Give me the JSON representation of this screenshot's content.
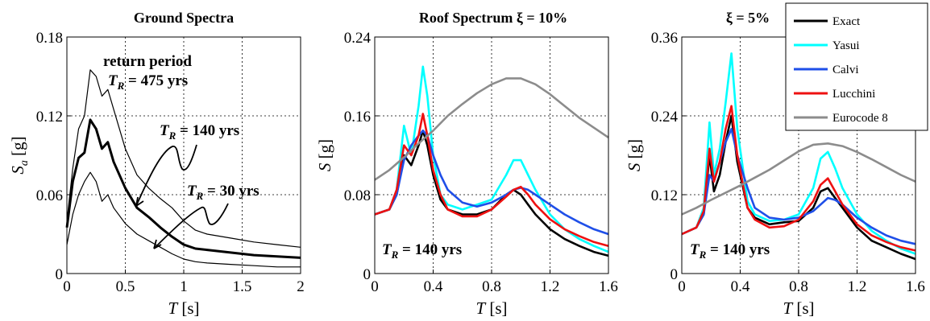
{
  "chart_data": [
    {
      "type": "line",
      "title": "Ground Spectra",
      "xlabel": "T [s]",
      "ylabel": "S_a [g]",
      "xlim": [
        0,
        2
      ],
      "ylim": [
        0,
        0.18
      ],
      "xticks": [
        "0",
        "0.5",
        "1",
        "1.5",
        "2"
      ],
      "yticks": [
        "0",
        "0.06",
        "0.12",
        "0.18"
      ],
      "grid": true,
      "series": [
        {
          "color": "#000000",
          "width": 1.2,
          "x": [
            0,
            0.05,
            0.1,
            0.15,
            0.2,
            0.25,
            0.3,
            0.35,
            0.4,
            0.5,
            0.6,
            0.7,
            0.8,
            0.9,
            1.0,
            1.1,
            1.2,
            1.4,
            1.6,
            1.8,
            2.0
          ],
          "y": [
            0.04,
            0.08,
            0.11,
            0.12,
            0.155,
            0.15,
            0.135,
            0.14,
            0.125,
            0.095,
            0.075,
            0.065,
            0.057,
            0.05,
            0.04,
            0.033,
            0.03,
            0.027,
            0.024,
            0.022,
            0.02
          ]
        },
        {
          "color": "#000000",
          "width": 3,
          "x": [
            0,
            0.05,
            0.1,
            0.15,
            0.2,
            0.25,
            0.3,
            0.35,
            0.4,
            0.5,
            0.6,
            0.7,
            0.8,
            0.9,
            1.0,
            1.1,
            1.2,
            1.4,
            1.6,
            1.8,
            2.0
          ],
          "y": [
            0.035,
            0.07,
            0.088,
            0.092,
            0.117,
            0.11,
            0.095,
            0.1,
            0.085,
            0.065,
            0.05,
            0.043,
            0.035,
            0.028,
            0.022,
            0.019,
            0.018,
            0.016,
            0.014,
            0.013,
            0.012
          ]
        },
        {
          "color": "#000000",
          "width": 1.2,
          "x": [
            0,
            0.05,
            0.1,
            0.15,
            0.2,
            0.25,
            0.3,
            0.35,
            0.4,
            0.5,
            0.6,
            0.7,
            0.8,
            0.9,
            1.0,
            1.1,
            1.2,
            1.4,
            1.6,
            1.8,
            2.0
          ],
          "y": [
            0.022,
            0.045,
            0.06,
            0.07,
            0.077,
            0.07,
            0.055,
            0.06,
            0.05,
            0.038,
            0.03,
            0.025,
            0.02,
            0.015,
            0.011,
            0.009,
            0.008,
            0.007,
            0.006,
            0.005,
            0.005
          ]
        }
      ],
      "annotations": [
        {
          "lines": [
            "return period",
            "T_R = 475 yrs"
          ]
        },
        {
          "lines": [
            "T_R = 140 yrs"
          ]
        },
        {
          "lines": [
            "T_R = 30 yrs"
          ]
        }
      ],
      "label_return": "return period",
      "label_475": "T",
      "label_475_sub": "R",
      "label_475_val": " = 475 yrs",
      "label_140_val": " = 140 yrs",
      "label_30_val": " = 30 yrs"
    },
    {
      "type": "line",
      "title": "Roof Spectrum ξ = 10%",
      "xlabel": "T [s]",
      "ylabel": "S [g]",
      "xlim": [
        0,
        1.6
      ],
      "ylim": [
        0,
        0.24
      ],
      "xticks": [
        "0",
        "0.4",
        "0.8",
        "1.2",
        "1.6"
      ],
      "yticks": [
        "0",
        "0.08",
        "0.16",
        "0.24"
      ],
      "grid": true,
      "annotation": "T_R = 140 yrs",
      "series": [
        {
          "name": "Exact",
          "color": "#000000",
          "x": [
            0,
            0.1,
            0.15,
            0.2,
            0.25,
            0.3,
            0.33,
            0.36,
            0.4,
            0.45,
            0.5,
            0.6,
            0.7,
            0.8,
            0.9,
            0.95,
            1.0,
            1.05,
            1.1,
            1.2,
            1.3,
            1.4,
            1.5,
            1.6
          ],
          "y": [
            0.06,
            0.065,
            0.08,
            0.12,
            0.11,
            0.13,
            0.145,
            0.13,
            0.1,
            0.075,
            0.065,
            0.06,
            0.06,
            0.065,
            0.08,
            0.085,
            0.08,
            0.07,
            0.06,
            0.045,
            0.035,
            0.028,
            0.022,
            0.018
          ]
        },
        {
          "name": "Yasui",
          "color": "#00ffff",
          "x": [
            0,
            0.1,
            0.15,
            0.2,
            0.25,
            0.3,
            0.33,
            0.36,
            0.4,
            0.45,
            0.5,
            0.6,
            0.7,
            0.8,
            0.9,
            0.95,
            1.0,
            1.05,
            1.1,
            1.2,
            1.3,
            1.4,
            1.5,
            1.6
          ],
          "y": [
            0.06,
            0.065,
            0.085,
            0.15,
            0.12,
            0.17,
            0.21,
            0.18,
            0.12,
            0.08,
            0.07,
            0.065,
            0.07,
            0.075,
            0.1,
            0.115,
            0.115,
            0.1,
            0.085,
            0.06,
            0.045,
            0.035,
            0.028,
            0.022
          ]
        },
        {
          "name": "Calvi",
          "color": "#1f4fe8",
          "x": [
            0,
            0.1,
            0.15,
            0.2,
            0.25,
            0.3,
            0.33,
            0.36,
            0.4,
            0.45,
            0.5,
            0.6,
            0.7,
            0.8,
            0.9,
            0.95,
            1.0,
            1.05,
            1.1,
            1.2,
            1.3,
            1.4,
            1.5,
            1.6
          ],
          "y": [
            0.06,
            0.065,
            0.08,
            0.115,
            0.13,
            0.14,
            0.145,
            0.14,
            0.12,
            0.1,
            0.085,
            0.072,
            0.068,
            0.072,
            0.08,
            0.085,
            0.087,
            0.085,
            0.08,
            0.07,
            0.06,
            0.052,
            0.045,
            0.04
          ]
        },
        {
          "name": "Lucchini",
          "color": "#ee1111",
          "x": [
            0,
            0.1,
            0.15,
            0.2,
            0.25,
            0.3,
            0.33,
            0.36,
            0.4,
            0.45,
            0.5,
            0.6,
            0.7,
            0.8,
            0.9,
            0.95,
            1.0,
            1.05,
            1.1,
            1.2,
            1.3,
            1.4,
            1.5,
            1.6
          ],
          "y": [
            0.06,
            0.065,
            0.085,
            0.13,
            0.12,
            0.14,
            0.162,
            0.14,
            0.105,
            0.08,
            0.065,
            0.058,
            0.058,
            0.065,
            0.078,
            0.085,
            0.088,
            0.08,
            0.07,
            0.055,
            0.045,
            0.038,
            0.032,
            0.028
          ]
        },
        {
          "name": "Eurocode 8",
          "color": "#8c8c8c",
          "x": [
            0,
            0.1,
            0.2,
            0.3,
            0.4,
            0.5,
            0.6,
            0.7,
            0.8,
            0.9,
            1.0,
            1.1,
            1.2,
            1.3,
            1.4,
            1.5,
            1.6
          ],
          "y": [
            0.095,
            0.105,
            0.118,
            0.132,
            0.145,
            0.16,
            0.172,
            0.183,
            0.192,
            0.198,
            0.198,
            0.192,
            0.182,
            0.17,
            0.158,
            0.148,
            0.138
          ]
        }
      ]
    },
    {
      "type": "line",
      "title": "ξ = 5%",
      "xlabel": "T [s]",
      "ylabel": "S [g]",
      "xlim": [
        0,
        1.6
      ],
      "ylim": [
        0,
        0.36
      ],
      "xticks": [
        "0",
        "0.4",
        "0.8",
        "1.2",
        "1.6"
      ],
      "yticks": [
        "0",
        "0.12",
        "0.24",
        "0.36"
      ],
      "grid": true,
      "annotation": "T_R = 140 yrs",
      "series": [
        {
          "name": "Exact",
          "color": "#000000",
          "x": [
            0,
            0.1,
            0.15,
            0.19,
            0.22,
            0.26,
            0.3,
            0.34,
            0.38,
            0.45,
            0.5,
            0.6,
            0.7,
            0.8,
            0.9,
            0.95,
            1.0,
            1.05,
            1.1,
            1.2,
            1.3,
            1.4,
            1.5,
            1.6
          ],
          "y": [
            0.06,
            0.07,
            0.09,
            0.18,
            0.125,
            0.15,
            0.2,
            0.24,
            0.17,
            0.1,
            0.085,
            0.075,
            0.078,
            0.08,
            0.1,
            0.125,
            0.13,
            0.115,
            0.1,
            0.07,
            0.05,
            0.04,
            0.03,
            0.022
          ]
        },
        {
          "name": "Yasui",
          "color": "#00ffff",
          "x": [
            0,
            0.1,
            0.15,
            0.19,
            0.22,
            0.26,
            0.3,
            0.34,
            0.38,
            0.45,
            0.5,
            0.6,
            0.7,
            0.8,
            0.9,
            0.95,
            1.0,
            1.05,
            1.1,
            1.2,
            1.3,
            1.4,
            1.5,
            1.6
          ],
          "y": [
            0.06,
            0.07,
            0.1,
            0.23,
            0.15,
            0.19,
            0.26,
            0.335,
            0.22,
            0.11,
            0.09,
            0.08,
            0.082,
            0.09,
            0.13,
            0.175,
            0.185,
            0.16,
            0.13,
            0.09,
            0.065,
            0.05,
            0.038,
            0.03
          ]
        },
        {
          "name": "Calvi",
          "color": "#1f4fe8",
          "x": [
            0,
            0.1,
            0.15,
            0.19,
            0.22,
            0.26,
            0.3,
            0.34,
            0.38,
            0.45,
            0.5,
            0.6,
            0.7,
            0.8,
            0.9,
            0.95,
            1.0,
            1.05,
            1.1,
            1.2,
            1.3,
            1.4,
            1.5,
            1.6
          ],
          "y": [
            0.06,
            0.07,
            0.09,
            0.15,
            0.14,
            0.17,
            0.2,
            0.22,
            0.18,
            0.13,
            0.1,
            0.085,
            0.082,
            0.085,
            0.095,
            0.105,
            0.115,
            0.112,
            0.105,
            0.085,
            0.07,
            0.058,
            0.05,
            0.045
          ]
        },
        {
          "name": "Lucchini",
          "color": "#ee1111",
          "x": [
            0,
            0.1,
            0.15,
            0.19,
            0.22,
            0.26,
            0.3,
            0.34,
            0.38,
            0.45,
            0.5,
            0.6,
            0.7,
            0.8,
            0.9,
            0.95,
            1.0,
            1.05,
            1.1,
            1.2,
            1.3,
            1.4,
            1.5,
            1.6
          ],
          "y": [
            0.06,
            0.07,
            0.095,
            0.19,
            0.14,
            0.17,
            0.22,
            0.255,
            0.18,
            0.1,
            0.082,
            0.07,
            0.072,
            0.082,
            0.11,
            0.135,
            0.145,
            0.125,
            0.105,
            0.075,
            0.058,
            0.048,
            0.04,
            0.035
          ]
        },
        {
          "name": "Eurocode 8",
          "color": "#8c8c8c",
          "x": [
            0,
            0.1,
            0.2,
            0.3,
            0.4,
            0.5,
            0.6,
            0.7,
            0.8,
            0.9,
            1.0,
            1.1,
            1.2,
            1.3,
            1.4,
            1.5,
            1.6
          ],
          "y": [
            0.09,
            0.1,
            0.112,
            0.123,
            0.134,
            0.146,
            0.158,
            0.172,
            0.186,
            0.196,
            0.198,
            0.194,
            0.185,
            0.174,
            0.162,
            0.15,
            0.14
          ]
        }
      ],
      "legend": [
        "Exact",
        "Yasui",
        "Calvi",
        "Lucchini",
        "Eurocode 8"
      ],
      "legend_position": "top-right"
    }
  ],
  "text": {
    "p1_title": "Ground Spectra",
    "p2_title": "Roof Spectrum ξ = 10%",
    "p3_title": "ξ = 5%",
    "tr_T": "T",
    "tr_R": "R",
    "tr_140": " = 140 yrs",
    "tr_30": " = 30 yrs",
    "tr_475": " = 475 yrs",
    "return_period": "return period",
    "x_T": "T",
    "x_unit": " [s]",
    "y_S": "S",
    "y_a": "a",
    "y_unit": " [g]"
  }
}
